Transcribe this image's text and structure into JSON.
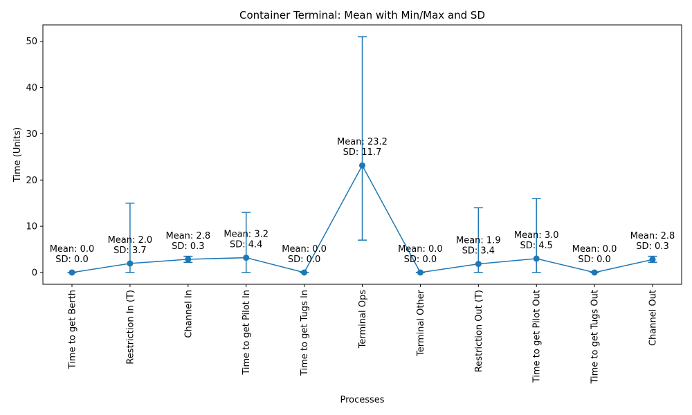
{
  "chart_data": {
    "type": "line",
    "title": "Container Terminal: Mean with Min/Max and SD",
    "xlabel": "Processes",
    "ylabel": "Time (Units)",
    "ylim": [
      -2.55,
      53.55
    ],
    "yticks": [
      0,
      10,
      20,
      30,
      40,
      50
    ],
    "grid": false,
    "color": "#1f77b4",
    "categories": [
      "Time to get Berth",
      "Restriction In (T)",
      "Channel In",
      "Time to get Pilot In",
      "Time to get Tugs In",
      "Terminal Ops",
      "Terminal Other",
      "Restriction Out (T)",
      "Time to get Pilot Out",
      "Time to get Tugs Out",
      "Channel Out"
    ],
    "mean": [
      0.0,
      1.95,
      2.85,
      3.2,
      0.0,
      23.15,
      0.0,
      1.85,
      3.0,
      0.0,
      2.8
    ],
    "min": [
      0,
      0,
      2.2,
      0,
      0,
      7,
      0,
      0,
      0,
      0,
      2.2
    ],
    "max": [
      0,
      15,
      3.5,
      13,
      0,
      51,
      0,
      14,
      16,
      0,
      3.5
    ],
    "mean_labels": [
      "Mean: 0.0",
      "Mean: 2.0",
      "Mean: 2.8",
      "Mean: 3.2",
      "Mean: 0.0",
      "Mean: 23.2",
      "Mean: 0.0",
      "Mean: 1.9",
      "Mean: 3.0",
      "Mean: 0.0",
      "Mean: 2.8"
    ],
    "sd_labels": [
      "SD: 0.0",
      "SD: 3.7",
      "SD: 0.3",
      "SD: 4.4",
      "SD: 0.0",
      "SD: 11.7",
      "SD: 0.0",
      "SD: 3.4",
      "SD: 4.5",
      "SD: 0.0",
      "SD: 0.3"
    ]
  }
}
